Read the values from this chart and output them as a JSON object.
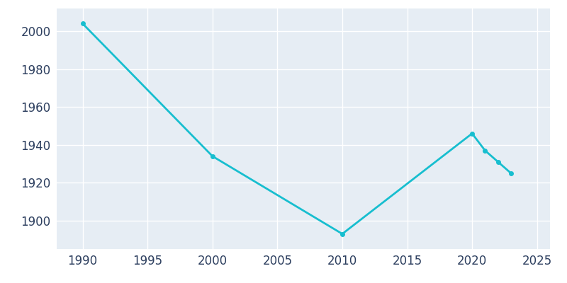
{
  "years": [
    1990,
    2000,
    2010,
    2020,
    2021,
    2022,
    2023
  ],
  "population": [
    2004,
    1934,
    1893,
    1946,
    1937,
    1931,
    1925
  ],
  "line_color": "#17becf",
  "background_color": "#E6EDF4",
  "plot_bg_color": "#E6EDF4",
  "outer_bg_color": "#ffffff",
  "grid_color": "#ffffff",
  "xlim": [
    1988,
    2026
  ],
  "ylim": [
    1885,
    2012
  ],
  "yticks": [
    1900,
    1920,
    1940,
    1960,
    1980,
    2000
  ],
  "xticks": [
    1990,
    1995,
    2000,
    2005,
    2010,
    2015,
    2020,
    2025
  ],
  "linewidth": 2.0,
  "marker": "o",
  "markersize": 4,
  "tick_label_color": "#2d3f5f",
  "tick_label_size": 12
}
